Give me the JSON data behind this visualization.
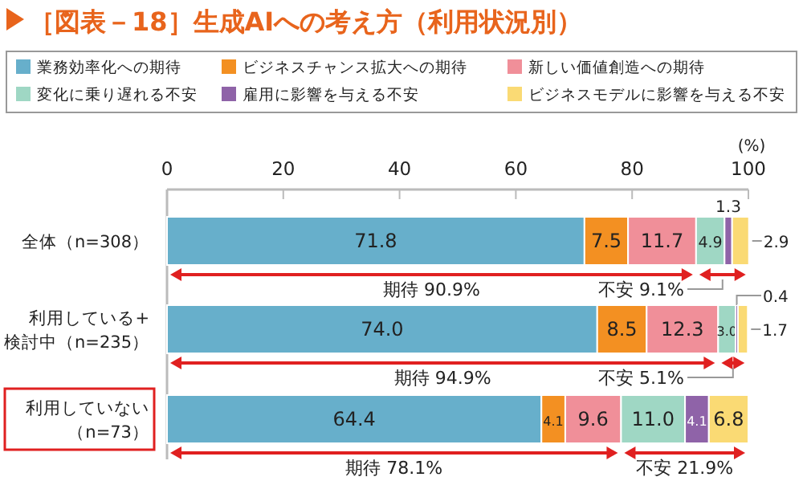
{
  "chart_data": {
    "type": "bar",
    "orientation": "horizontal",
    "stacked": true,
    "title": "［図表－18］生成AIへの考え方（利用状況別）",
    "xlabel": "(%)",
    "categories": [
      "全体（n=308）",
      "利用している+検討中（n=235）",
      "利用していない（n=73）"
    ],
    "series": [
      {
        "name": "業務効率化への期待",
        "color": "#67afcb",
        "values": [
          71.8,
          74.0,
          64.4
        ],
        "value_labels": [
          "71.8",
          "74.0",
          "64.4"
        ]
      },
      {
        "name": "ビジネスチャンス拡大への期待",
        "color": "#f39022",
        "values": [
          7.5,
          8.5,
          4.1
        ],
        "value_labels": [
          "7.5",
          "8.5",
          "4.1"
        ]
      },
      {
        "name": "新しい価値創造への期待",
        "color": "#f08f99",
        "values": [
          11.7,
          12.3,
          9.6
        ],
        "value_labels": [
          "11.7",
          "12.3",
          "9.6"
        ]
      },
      {
        "name": "変化に乗り遅れる不安",
        "color": "#9fd7c4",
        "values": [
          4.9,
          3.0,
          11.0
        ],
        "value_labels": [
          "4.9",
          "3.0",
          "11.0"
        ]
      },
      {
        "name": "雇用に影響を与える不安",
        "color": "#8f63a8",
        "values": [
          1.3,
          0.4,
          4.1
        ],
        "value_labels": [
          "1.3",
          "0.4",
          "4.1"
        ]
      },
      {
        "name": "ビジネスモデルに影響を与える不安",
        "color": "#fada74",
        "values": [
          2.9,
          1.7,
          6.8
        ],
        "value_labels": [
          "2.9",
          "1.7",
          "6.8"
        ]
      }
    ],
    "xlim": [
      0,
      100
    ],
    "xticks": [
      0,
      20,
      40,
      60,
      80,
      100
    ],
    "legend": "top",
    "grid": false,
    "annotations": [
      "期待 90.9%",
      "不安 9.1%",
      "期待 94.9%",
      "不安 5.1%",
      "期待 78.1%",
      "不安 21.9%"
    ]
  }
}
